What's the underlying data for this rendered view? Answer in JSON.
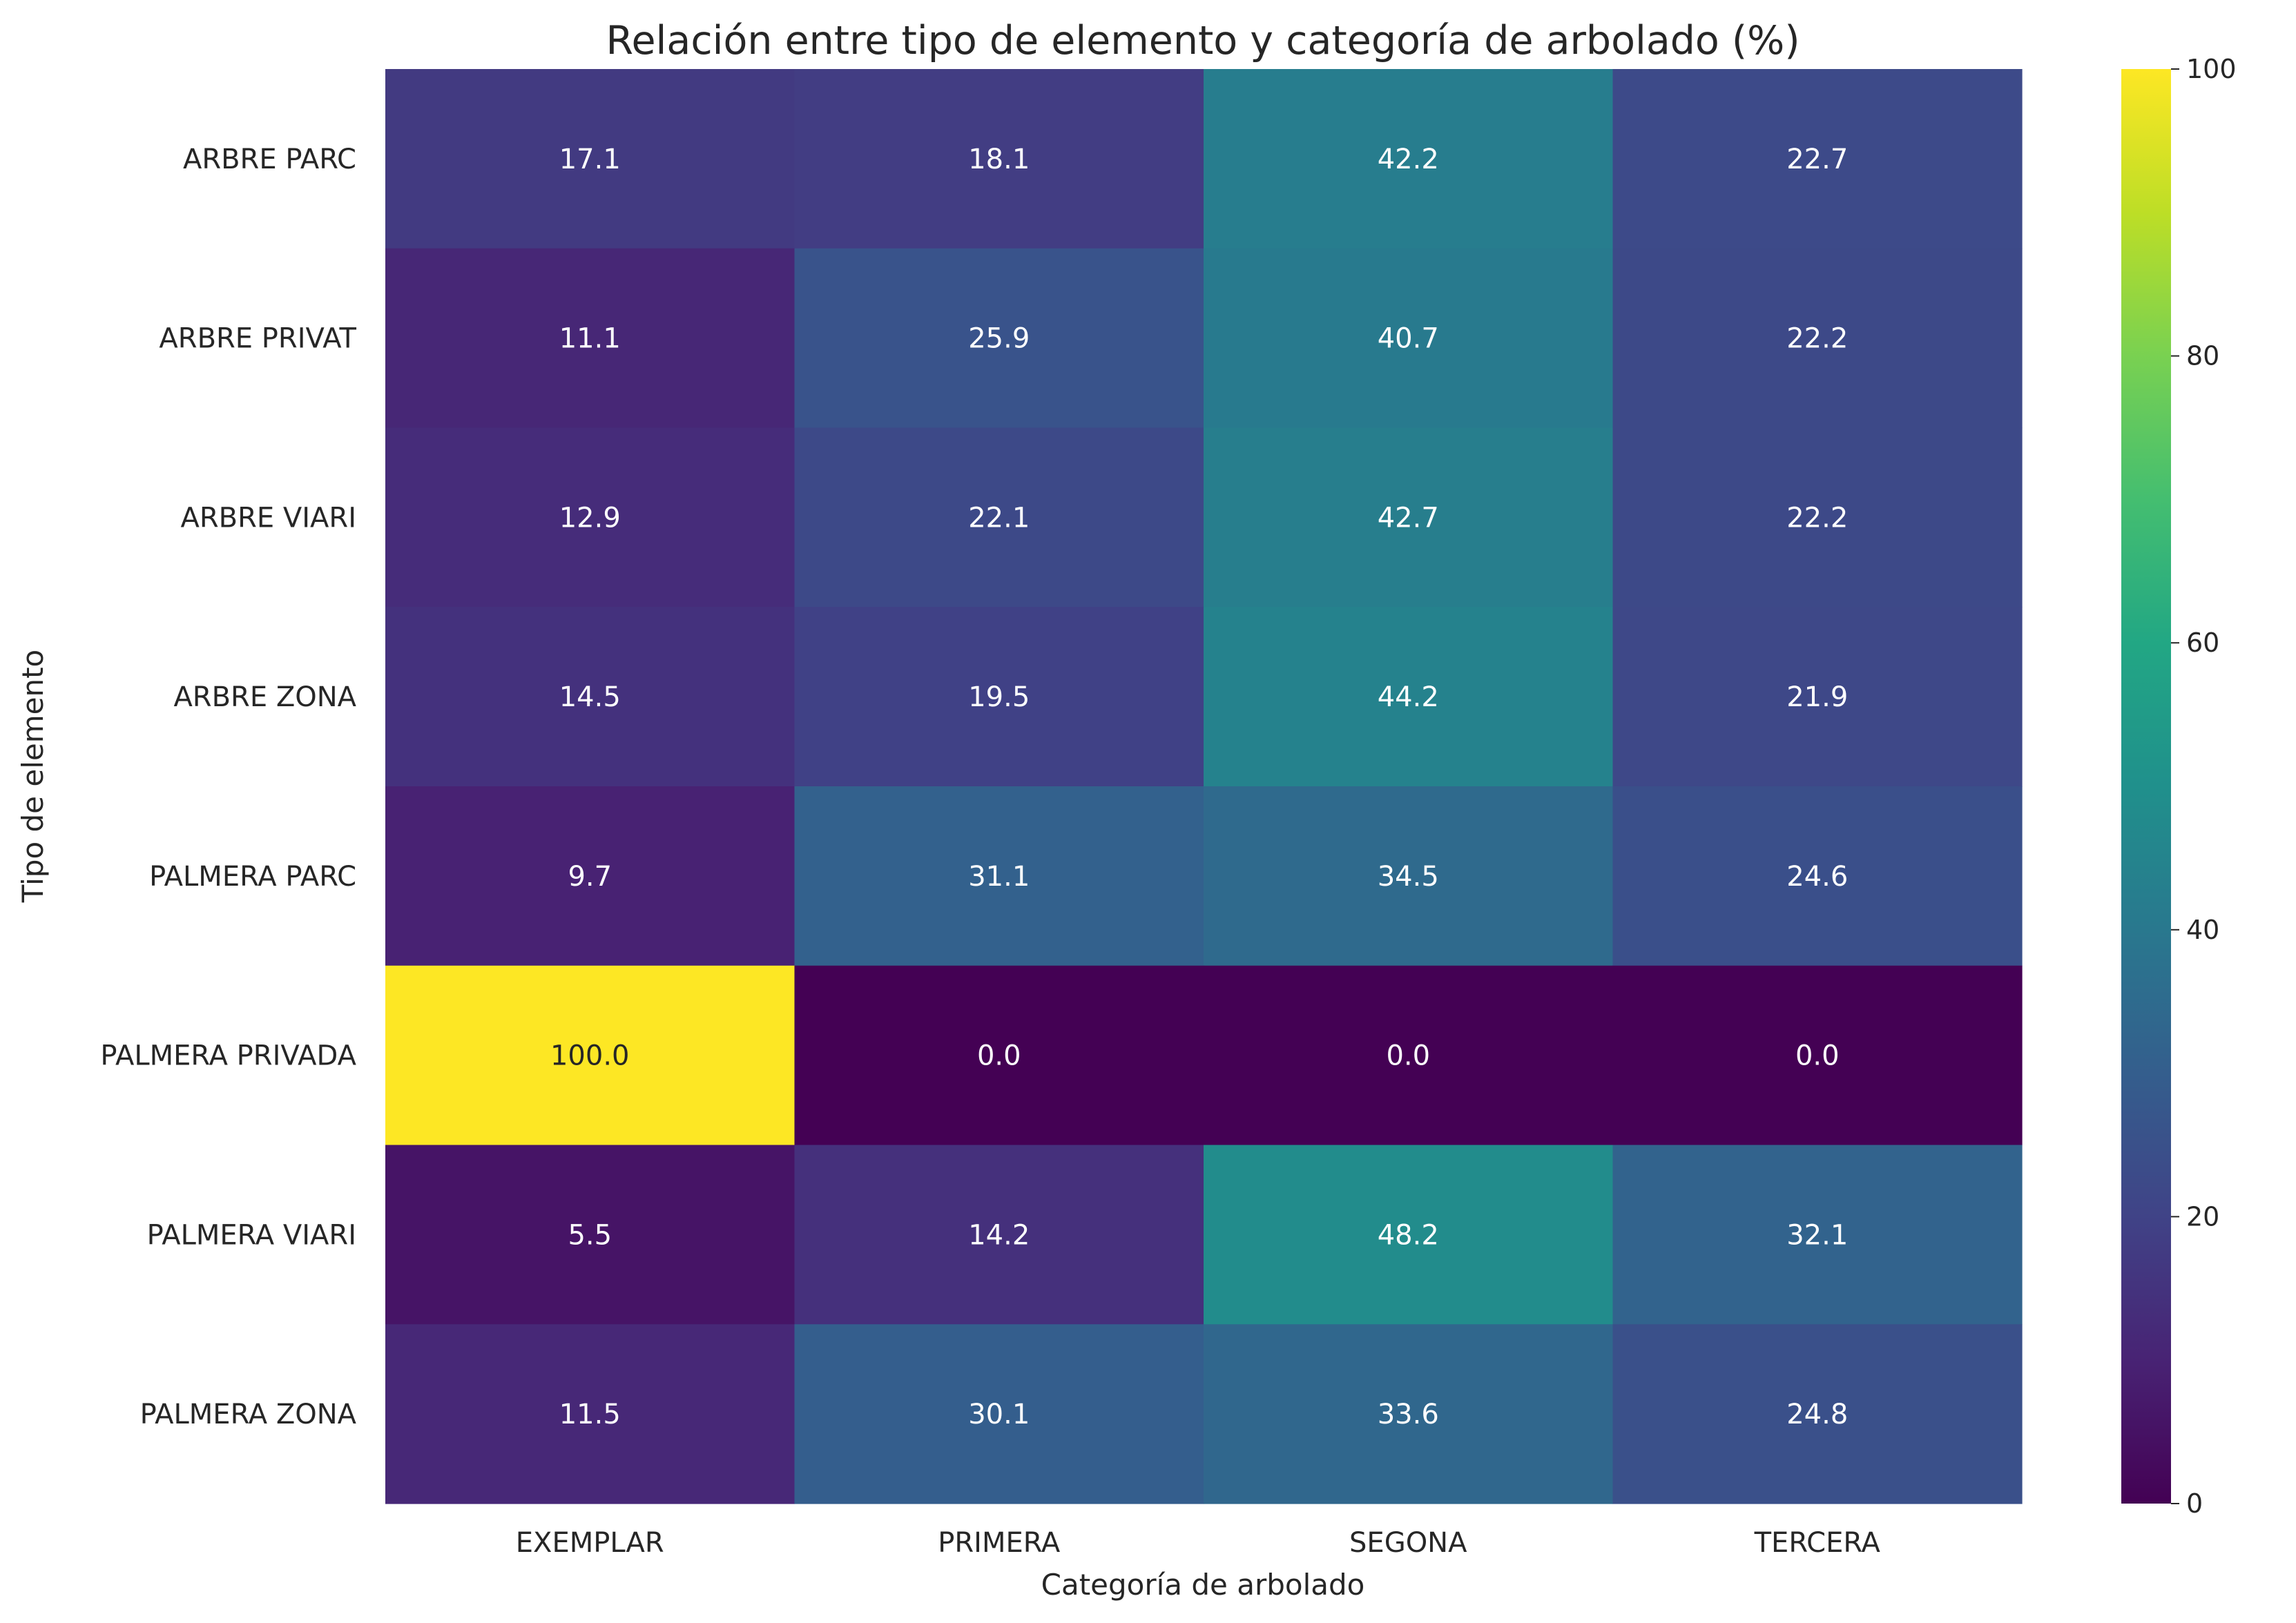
{
  "chart_data": {
    "type": "heatmap",
    "title": "Relación entre tipo de elemento y categoría de arbolado (%)",
    "xlabel": "Categoría de arbolado",
    "ylabel": "Tipo de elemento",
    "x_categories": [
      "EXEMPLAR",
      "PRIMERA",
      "SEGONA",
      "TERCERA"
    ],
    "y_categories": [
      "ARBRE PARC",
      "ARBRE PRIVAT",
      "ARBRE VIARI",
      "ARBRE ZONA",
      "PALMERA PARC",
      "PALMERA PRIVADA",
      "PALMERA VIARI",
      "PALMERA ZONA"
    ],
    "values": [
      [
        17.1,
        18.1,
        42.2,
        22.7
      ],
      [
        11.1,
        25.9,
        40.7,
        22.2
      ],
      [
        12.9,
        22.1,
        42.7,
        22.2
      ],
      [
        14.5,
        19.5,
        44.2,
        21.9
      ],
      [
        9.7,
        31.1,
        34.5,
        24.6
      ],
      [
        100.0,
        0.0,
        0.0,
        0.0
      ],
      [
        5.5,
        14.2,
        48.2,
        32.1
      ],
      [
        11.5,
        30.1,
        33.6,
        24.8
      ]
    ],
    "value_labels": [
      [
        "17.1",
        "18.1",
        "42.2",
        "22.7"
      ],
      [
        "11.1",
        "25.9",
        "40.7",
        "22.2"
      ],
      [
        "12.9",
        "22.1",
        "42.7",
        "22.2"
      ],
      [
        "14.5",
        "19.5",
        "44.2",
        "21.9"
      ],
      [
        "9.7",
        "31.1",
        "34.5",
        "24.6"
      ],
      [
        "100.0",
        "0.0",
        "0.0",
        "0.0"
      ],
      [
        "5.5",
        "14.2",
        "48.2",
        "32.1"
      ],
      [
        "11.5",
        "30.1",
        "33.6",
        "24.8"
      ]
    ],
    "colormap": "viridis",
    "color_range": [
      0,
      100
    ],
    "colorbar_ticks": [
      "0",
      "20",
      "40",
      "60",
      "80",
      "100"
    ],
    "annotate": true,
    "grid": false
  }
}
